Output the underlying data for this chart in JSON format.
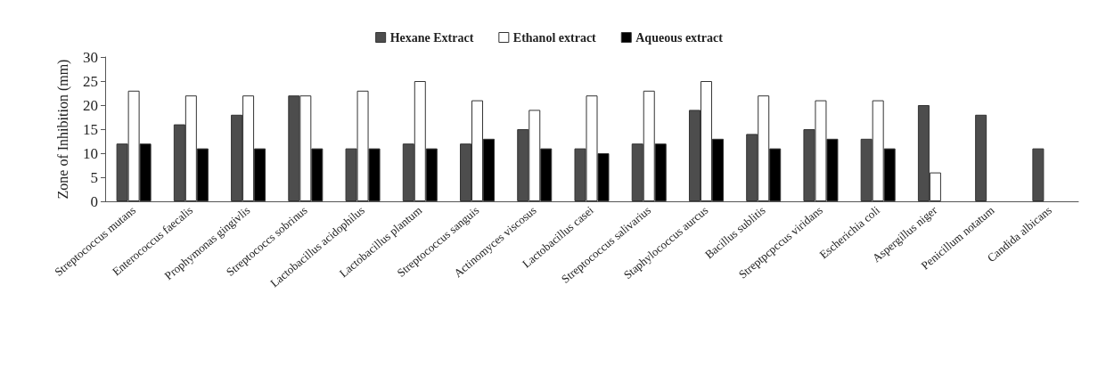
{
  "chart_data": {
    "type": "bar",
    "ylabel": "Zone of Inhibition (mm)",
    "categories": [
      "Streptococcus mutans",
      "Enterococcus faecalis",
      "Prophymonas gingivlis",
      "Streptococcs sobrinus",
      "Lactobacillus acidophilus",
      "Lactobacillus plantum",
      "Streptococcus sanguis",
      "Actinomyces viscosus",
      "Lactobacillus casei",
      "Streptococcus salivarius",
      "Staphylococcus aurcus",
      "Bacillus sublitis",
      "Streptpcpccus viridans",
      "Escherichia coli",
      "Aspergillus niger",
      "Penicillum notatum",
      "Candida albicans"
    ],
    "series": [
      {
        "name": "Hexane Extract",
        "color": "#4d4d4d",
        "values": [
          12,
          16,
          18,
          22,
          11,
          12,
          12,
          15,
          11,
          12,
          19,
          14,
          15,
          13,
          20,
          18,
          11
        ]
      },
      {
        "name": "Ethanol extract",
        "color": "#ffffff",
        "values": [
          23,
          22,
          22,
          22,
          23,
          25,
          21,
          19,
          22,
          23,
          25,
          22,
          21,
          21,
          6,
          null,
          null
        ]
      },
      {
        "name": "Aqueous extract",
        "color": "#000000",
        "values": [
          12,
          11,
          11,
          11,
          11,
          11,
          13,
          11,
          10,
          12,
          13,
          11,
          13,
          11,
          null,
          null,
          null
        ]
      }
    ],
    "ylim": [
      0,
      30
    ],
    "yticks": [
      0,
      5,
      10,
      15,
      20,
      25,
      30
    ],
    "grid": false,
    "legend": "top"
  }
}
